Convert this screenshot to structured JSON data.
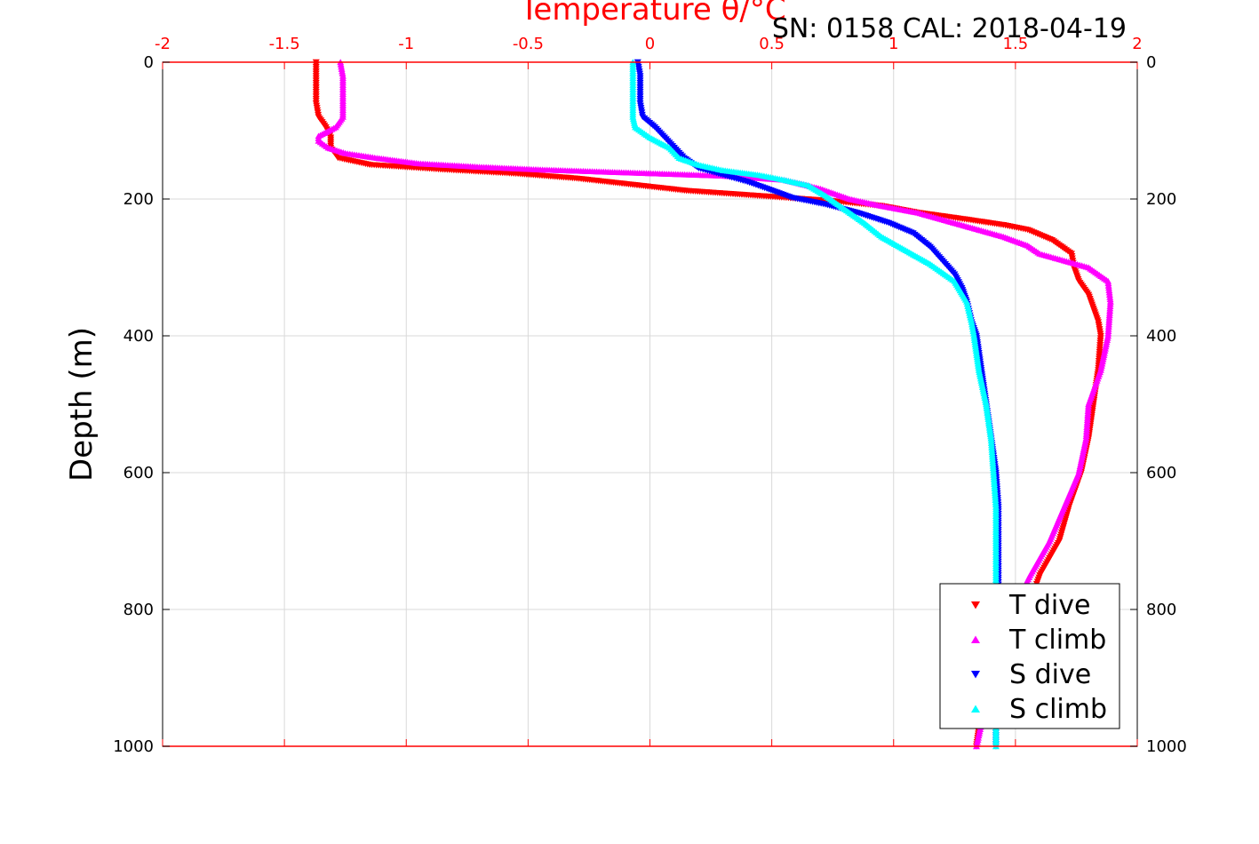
{
  "chart_data": {
    "type": "scatter",
    "title": "Temperature θ/°C",
    "subtitle": "SN: 0158  CAL: 2018-04-19",
    "xlabel": "",
    "ylabel": "Depth (m)",
    "xlim": [
      -2,
      2
    ],
    "ylim": [
      0,
      1000
    ],
    "y_reversed": true,
    "grid": true,
    "x_axis_position": "top",
    "legend_position": "bottom-right",
    "x_ticks": [
      "-2",
      "-1.5",
      "-1",
      "-0.5",
      "0",
      "0.5",
      "1",
      "1.5",
      "2"
    ],
    "y_ticks": [
      "0",
      "200",
      "400",
      "600",
      "800",
      "1000"
    ],
    "colors": {
      "axis_x": "#ff0000",
      "axis_y": "#000000"
    },
    "series": [
      {
        "name": "T dive",
        "marker": "triangle-down",
        "color": "#ff0000",
        "points": [
          [
            -1.37,
            0
          ],
          [
            -1.37,
            20
          ],
          [
            -1.37,
            40
          ],
          [
            -1.37,
            60
          ],
          [
            -1.36,
            80
          ],
          [
            -1.33,
            95
          ],
          [
            -1.31,
            110
          ],
          [
            -1.31,
            125
          ],
          [
            -1.28,
            140
          ],
          [
            -1.15,
            150
          ],
          [
            -0.85,
            157
          ],
          [
            -0.55,
            163
          ],
          [
            -0.3,
            170
          ],
          [
            -0.15,
            176
          ],
          [
            0.0,
            182
          ],
          [
            0.15,
            188
          ],
          [
            0.35,
            193
          ],
          [
            0.55,
            198
          ],
          [
            0.75,
            203
          ],
          [
            0.95,
            210
          ],
          [
            1.1,
            220
          ],
          [
            1.3,
            230
          ],
          [
            1.45,
            238
          ],
          [
            1.55,
            245
          ],
          [
            1.65,
            260
          ],
          [
            1.73,
            280
          ],
          [
            1.74,
            300
          ],
          [
            1.76,
            320
          ],
          [
            1.8,
            340
          ],
          [
            1.82,
            360
          ],
          [
            1.84,
            380
          ],
          [
            1.85,
            400
          ],
          [
            1.84,
            450
          ],
          [
            1.82,
            500
          ],
          [
            1.8,
            550
          ],
          [
            1.77,
            600
          ],
          [
            1.72,
            650
          ],
          [
            1.68,
            700
          ],
          [
            1.6,
            750
          ],
          [
            1.55,
            800
          ],
          [
            1.48,
            850
          ],
          [
            1.42,
            900
          ],
          [
            1.36,
            950
          ],
          [
            1.34,
            1000
          ]
        ]
      },
      {
        "name": "T climb",
        "marker": "triangle-up",
        "color": "#ff00ff",
        "points": [
          [
            -1.27,
            0
          ],
          [
            -1.26,
            20
          ],
          [
            -1.26,
            40
          ],
          [
            -1.26,
            60
          ],
          [
            -1.26,
            80
          ],
          [
            -1.29,
            95
          ],
          [
            -1.36,
            108
          ],
          [
            -1.36,
            115
          ],
          [
            -1.32,
            125
          ],
          [
            -1.25,
            133
          ],
          [
            -1.12,
            140
          ],
          [
            -0.95,
            148
          ],
          [
            -0.7,
            153
          ],
          [
            -0.45,
            157
          ],
          [
            -0.2,
            160
          ],
          [
            0.05,
            163
          ],
          [
            0.3,
            166
          ],
          [
            0.55,
            172
          ],
          [
            0.7,
            185
          ],
          [
            0.82,
            200
          ],
          [
            0.95,
            210
          ],
          [
            1.1,
            220
          ],
          [
            1.2,
            230
          ],
          [
            1.35,
            245
          ],
          [
            1.45,
            255
          ],
          [
            1.55,
            268
          ],
          [
            1.6,
            280
          ],
          [
            1.7,
            290
          ],
          [
            1.8,
            300
          ],
          [
            1.88,
            320
          ],
          [
            1.89,
            350
          ],
          [
            1.88,
            400
          ],
          [
            1.85,
            450
          ],
          [
            1.8,
            500
          ],
          [
            1.79,
            550
          ],
          [
            1.76,
            600
          ],
          [
            1.7,
            650
          ],
          [
            1.64,
            700
          ],
          [
            1.56,
            750
          ],
          [
            1.49,
            800
          ],
          [
            1.44,
            850
          ],
          [
            1.4,
            900
          ],
          [
            1.37,
            950
          ],
          [
            1.34,
            1000
          ]
        ]
      },
      {
        "name": "S dive",
        "marker": "triangle-down",
        "color": "#0000ff",
        "points": [
          [
            -0.05,
            0
          ],
          [
            -0.04,
            20
          ],
          [
            -0.04,
            40
          ],
          [
            -0.04,
            60
          ],
          [
            -0.03,
            80
          ],
          [
            0.02,
            95
          ],
          [
            0.06,
            110
          ],
          [
            0.1,
            125
          ],
          [
            0.14,
            140
          ],
          [
            0.2,
            155
          ],
          [
            0.3,
            165
          ],
          [
            0.4,
            175
          ],
          [
            0.48,
            185
          ],
          [
            0.58,
            198
          ],
          [
            0.72,
            208
          ],
          [
            0.85,
            220
          ],
          [
            0.98,
            235
          ],
          [
            1.08,
            250
          ],
          [
            1.15,
            270
          ],
          [
            1.2,
            290
          ],
          [
            1.25,
            310
          ],
          [
            1.28,
            330
          ],
          [
            1.3,
            350
          ],
          [
            1.32,
            380
          ],
          [
            1.34,
            400
          ],
          [
            1.36,
            450
          ],
          [
            1.38,
            500
          ],
          [
            1.4,
            550
          ],
          [
            1.42,
            600
          ],
          [
            1.43,
            650
          ],
          [
            1.43,
            700
          ],
          [
            1.43,
            750
          ],
          [
            1.43,
            800
          ],
          [
            1.43,
            850
          ],
          [
            1.43,
            900
          ],
          [
            1.42,
            950
          ],
          [
            1.42,
            1000
          ]
        ]
      },
      {
        "name": "S climb",
        "marker": "triangle-up",
        "color": "#00ffff",
        "points": [
          [
            -0.07,
            0
          ],
          [
            -0.07,
            20
          ],
          [
            -0.07,
            40
          ],
          [
            -0.07,
            60
          ],
          [
            -0.07,
            80
          ],
          [
            -0.06,
            95
          ],
          [
            0.0,
            110
          ],
          [
            0.08,
            125
          ],
          [
            0.12,
            140
          ],
          [
            0.2,
            150
          ],
          [
            0.3,
            158
          ],
          [
            0.45,
            165
          ],
          [
            0.55,
            172
          ],
          [
            0.65,
            180
          ],
          [
            0.72,
            195
          ],
          [
            0.8,
            215
          ],
          [
            0.88,
            235
          ],
          [
            0.95,
            255
          ],
          [
            1.05,
            275
          ],
          [
            1.15,
            295
          ],
          [
            1.25,
            320
          ],
          [
            1.3,
            350
          ],
          [
            1.32,
            380
          ],
          [
            1.33,
            400
          ],
          [
            1.35,
            450
          ],
          [
            1.38,
            500
          ],
          [
            1.4,
            550
          ],
          [
            1.41,
            600
          ],
          [
            1.42,
            650
          ],
          [
            1.42,
            700
          ],
          [
            1.42,
            750
          ],
          [
            1.42,
            800
          ],
          [
            1.42,
            850
          ],
          [
            1.42,
            900
          ],
          [
            1.42,
            950
          ],
          [
            1.42,
            1000
          ]
        ]
      }
    ]
  }
}
